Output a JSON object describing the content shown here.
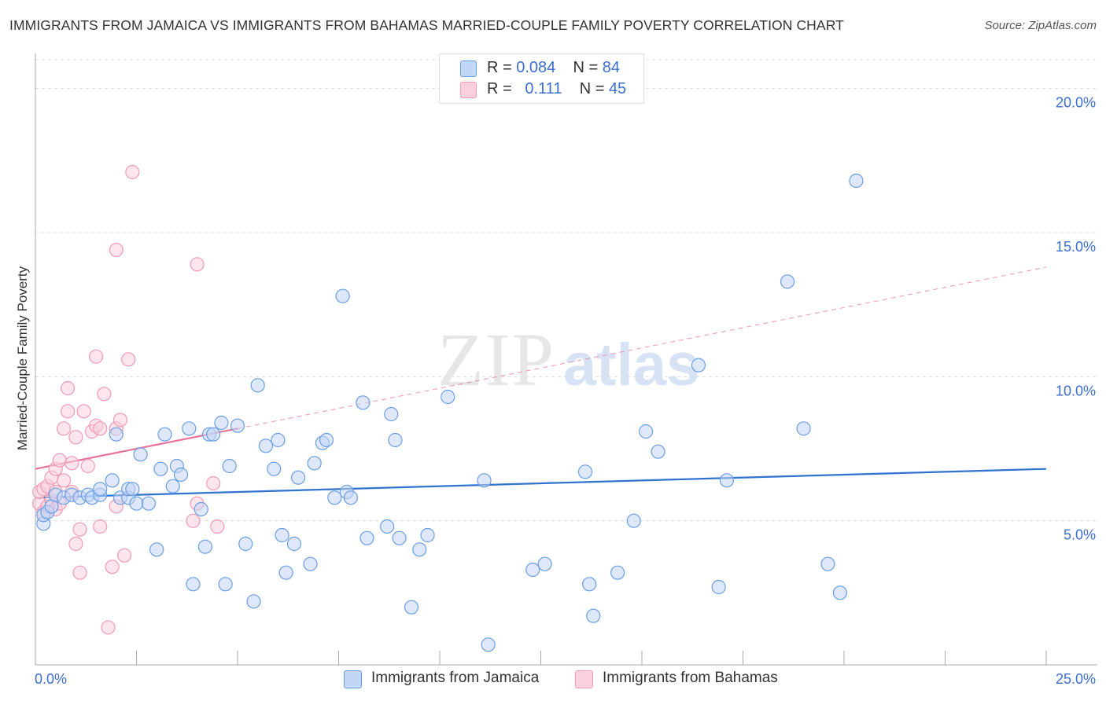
{
  "header": {
    "title": "IMMIGRANTS FROM JAMAICA VS IMMIGRANTS FROM BAHAMAS MARRIED-COUPLE FAMILY POVERTY CORRELATION CHART",
    "source": "Source: ZipAtlas.com"
  },
  "legend": {
    "jamaica": {
      "r_label": "R =",
      "r_value": "0.084",
      "n_label": "N =",
      "n_value": "84"
    },
    "bahamas": {
      "r_label": "R =",
      "r_value": "0.111",
      "n_label": "N =",
      "n_value": "45"
    }
  },
  "bottom_legend": {
    "jamaica": "Immigrants from Jamaica",
    "bahamas": "Immigrants from Bahamas"
  },
  "watermark": {
    "zip": "ZIP",
    "atlas": "atlas"
  },
  "colors": {
    "jamaica": "#6a9ee3",
    "jamaica_fill": "#c2d6f5",
    "jamaica_line": "#2f72d0",
    "bahamas": "#f09ab3",
    "bahamas_fill": "#f9d0dc",
    "bahamas_line": "#e8729a",
    "axis_text": "#3b6fd0",
    "grid": "#dcdcdc"
  },
  "chart_data": {
    "type": "scatter",
    "title": "IMMIGRANTS FROM JAMAICA VS IMMIGRANTS FROM BAHAMAS MARRIED-COUPLE FAMILY POVERTY CORRELATION CHART",
    "xlabel": "",
    "ylabel": "Married-Couple Family Poverty",
    "xlim": [
      0,
      25
    ],
    "ylim": [
      0,
      21
    ],
    "x_tick_labels": [
      {
        "value": 0,
        "label": "0.0%"
      },
      {
        "value": 25,
        "label": "25.0%"
      }
    ],
    "y_ticks": [
      {
        "value": 5,
        "label": "5.0%"
      },
      {
        "value": 10,
        "label": "10.0%"
      },
      {
        "value": 15,
        "label": "15.0%"
      },
      {
        "value": 20,
        "label": "20.0%"
      }
    ],
    "x_minor_ticks": [
      0,
      2.5,
      5,
      7.5,
      10,
      12.5,
      15,
      17.5,
      20,
      22.5,
      25
    ],
    "series": [
      {
        "name": "Immigrants from Jamaica",
        "trend": {
          "x0": 0,
          "y0": 5.8,
          "x1": 25,
          "y1": 6.8,
          "dashed_to": 25
        },
        "points": [
          [
            0.2,
            4.9
          ],
          [
            0.2,
            5.2
          ],
          [
            0.3,
            5.3
          ],
          [
            0.4,
            5.5
          ],
          [
            0.5,
            5.9
          ],
          [
            0.7,
            5.8
          ],
          [
            0.9,
            5.9
          ],
          [
            1.1,
            5.8
          ],
          [
            1.3,
            5.9
          ],
          [
            1.4,
            5.8
          ],
          [
            1.6,
            5.9
          ],
          [
            1.6,
            6.1
          ],
          [
            1.9,
            6.4
          ],
          [
            2.0,
            8.0
          ],
          [
            2.1,
            5.8
          ],
          [
            2.3,
            5.8
          ],
          [
            2.3,
            6.1
          ],
          [
            2.4,
            6.1
          ],
          [
            2.5,
            5.6
          ],
          [
            2.6,
            7.3
          ],
          [
            2.8,
            5.6
          ],
          [
            3.0,
            4.0
          ],
          [
            3.1,
            6.8
          ],
          [
            3.2,
            8.0
          ],
          [
            3.4,
            6.2
          ],
          [
            3.5,
            6.9
          ],
          [
            3.6,
            6.6
          ],
          [
            3.8,
            8.2
          ],
          [
            3.9,
            2.8
          ],
          [
            4.1,
            5.4
          ],
          [
            4.2,
            4.1
          ],
          [
            4.3,
            8.0
          ],
          [
            4.4,
            8.0
          ],
          [
            4.6,
            8.4
          ],
          [
            4.7,
            2.8
          ],
          [
            4.8,
            6.9
          ],
          [
            5.0,
            8.3
          ],
          [
            5.2,
            4.2
          ],
          [
            5.4,
            2.2
          ],
          [
            5.5,
            9.7
          ],
          [
            5.7,
            7.6
          ],
          [
            5.9,
            6.8
          ],
          [
            6.0,
            7.8
          ],
          [
            6.1,
            4.5
          ],
          [
            6.2,
            3.2
          ],
          [
            6.4,
            4.2
          ],
          [
            6.5,
            6.5
          ],
          [
            6.8,
            3.5
          ],
          [
            6.9,
            7.0
          ],
          [
            7.1,
            7.7
          ],
          [
            7.2,
            7.8
          ],
          [
            7.4,
            5.8
          ],
          [
            7.6,
            12.8
          ],
          [
            7.7,
            6.0
          ],
          [
            7.8,
            5.8
          ],
          [
            8.1,
            9.1
          ],
          [
            8.2,
            4.4
          ],
          [
            8.7,
            4.8
          ],
          [
            8.8,
            8.7
          ],
          [
            8.9,
            7.8
          ],
          [
            9.0,
            4.4
          ],
          [
            9.3,
            2.0
          ],
          [
            9.5,
            4.0
          ],
          [
            9.7,
            4.5
          ],
          [
            10.2,
            9.3
          ],
          [
            11.1,
            6.4
          ],
          [
            11.2,
            0.7
          ],
          [
            12.3,
            3.3
          ],
          [
            12.6,
            3.5
          ],
          [
            13.6,
            6.7
          ],
          [
            13.7,
            2.8
          ],
          [
            13.8,
            1.7
          ],
          [
            14.4,
            3.2
          ],
          [
            14.8,
            5.0
          ],
          [
            15.1,
            8.1
          ],
          [
            15.4,
            7.4
          ],
          [
            16.4,
            10.4
          ],
          [
            16.9,
            2.7
          ],
          [
            17.1,
            6.4
          ],
          [
            18.6,
            13.3
          ],
          [
            19.0,
            8.2
          ],
          [
            19.6,
            3.5
          ],
          [
            19.9,
            2.5
          ],
          [
            20.3,
            16.8
          ]
        ]
      },
      {
        "name": "Immigrants from Bahamas",
        "trend": {
          "x0": 0,
          "y0": 6.8,
          "x1": 5.0,
          "y1": 8.2,
          "dashed_to": 25
        },
        "points": [
          [
            0.1,
            5.6
          ],
          [
            0.1,
            6.0
          ],
          [
            0.2,
            5.3
          ],
          [
            0.2,
            6.1
          ],
          [
            0.3,
            5.5
          ],
          [
            0.3,
            6.2
          ],
          [
            0.4,
            5.7
          ],
          [
            0.4,
            6.5
          ],
          [
            0.5,
            5.4
          ],
          [
            0.5,
            6.0
          ],
          [
            0.5,
            6.8
          ],
          [
            0.6,
            7.1
          ],
          [
            0.6,
            5.6
          ],
          [
            0.7,
            8.2
          ],
          [
            0.7,
            6.4
          ],
          [
            0.8,
            8.8
          ],
          [
            0.8,
            9.6
          ],
          [
            0.9,
            7.0
          ],
          [
            0.9,
            6.0
          ],
          [
            1.0,
            7.9
          ],
          [
            1.0,
            4.2
          ],
          [
            1.1,
            4.7
          ],
          [
            1.1,
            3.2
          ],
          [
            1.2,
            8.8
          ],
          [
            1.3,
            6.9
          ],
          [
            1.4,
            8.1
          ],
          [
            1.5,
            8.3
          ],
          [
            1.5,
            10.7
          ],
          [
            1.6,
            8.2
          ],
          [
            1.6,
            4.8
          ],
          [
            1.7,
            9.4
          ],
          [
            1.8,
            1.3
          ],
          [
            1.9,
            3.4
          ],
          [
            2.0,
            8.2
          ],
          [
            2.0,
            14.4
          ],
          [
            2.1,
            8.5
          ],
          [
            2.2,
            3.8
          ],
          [
            2.3,
            10.6
          ],
          [
            2.4,
            17.1
          ],
          [
            4.0,
            13.9
          ],
          [
            3.9,
            5.0
          ],
          [
            4.0,
            5.6
          ],
          [
            4.4,
            6.3
          ],
          [
            4.5,
            4.8
          ],
          [
            2.0,
            5.5
          ]
        ]
      }
    ]
  }
}
